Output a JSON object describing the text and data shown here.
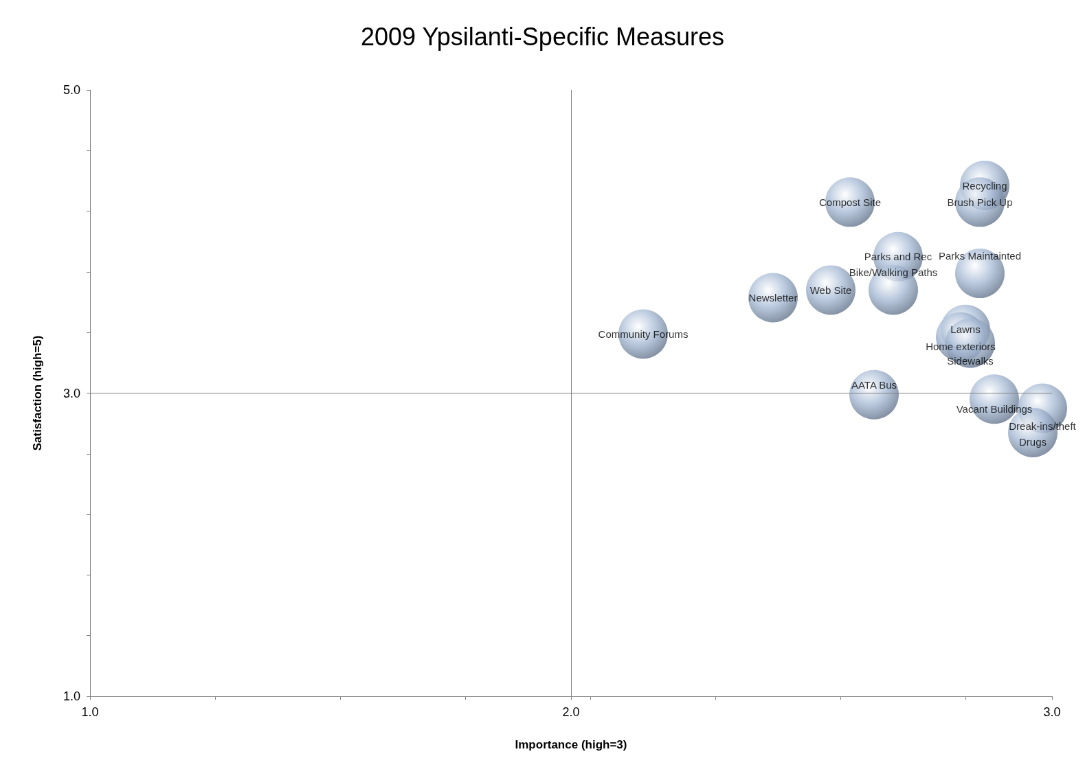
{
  "chart_data": {
    "type": "bubble",
    "title": "2009 Ypsilanti-Specific Measures",
    "xlabel": "Importance (high=3)",
    "ylabel": "Satisfaction (high=5)",
    "xlim": [
      1,
      3
    ],
    "xticks": [
      {
        "value": 1,
        "label": "1.0"
      },
      {
        "value": 1.26,
        "label": null
      },
      {
        "value": 1.52,
        "label": null
      },
      {
        "value": 1.78,
        "label": null
      },
      {
        "value": 2,
        "label": "2.0"
      },
      {
        "value": 2.04,
        "label": null
      },
      {
        "value": 2.3,
        "label": null
      },
      {
        "value": 2.56,
        "label": null
      },
      {
        "value": 2.82,
        "label": null
      },
      {
        "value": 3,
        "label": "3.0"
      }
    ],
    "ylim": [
      1,
      5
    ],
    "yticks": [
      {
        "value": 1,
        "label": "1.0"
      },
      {
        "value": 1.4,
        "label": null
      },
      {
        "value": 1.8,
        "label": null
      },
      {
        "value": 2.2,
        "label": null
      },
      {
        "value": 2.6,
        "label": null
      },
      {
        "value": 3,
        "label": "3.0"
      },
      {
        "value": 3.4,
        "label": null
      },
      {
        "value": 3.8,
        "label": null
      },
      {
        "value": 4.2,
        "label": null
      },
      {
        "value": 4.6,
        "label": null
      },
      {
        "value": 5,
        "label": "5.0"
      }
    ],
    "grid": false,
    "legend": false,
    "ref_lines": [
      {
        "axis": "x",
        "value": 2,
        "label": null,
        "color": "#808080"
      },
      {
        "axis": "y",
        "value": 3,
        "label": null,
        "color": "#808080"
      }
    ],
    "series": [
      {
        "name": "Community Forums",
        "color": "#a9bcd6",
        "x": [
          2.15
        ],
        "values": [
          3.39
        ],
        "sizes": [
          1
        ]
      },
      {
        "name": "Newsletter",
        "color": "#a9bcd6",
        "x": [
          2.42
        ],
        "values": [
          3.63
        ],
        "sizes": [
          1
        ]
      },
      {
        "name": "Web Site",
        "color": "#a9bcd6",
        "x": [
          2.54
        ],
        "values": [
          3.68
        ],
        "sizes": [
          1
        ]
      },
      {
        "name": "Compost Site",
        "color": "#a9bcd6",
        "x": [
          2.58
        ],
        "values": [
          4.26
        ],
        "sizes": [
          1
        ]
      },
      {
        "name": "Parks and Rec",
        "color": "#a9bcd6",
        "x": [
          2.68
        ],
        "values": [
          3.9
        ],
        "sizes": [
          1
        ]
      },
      {
        "name": "Bike/Walking Paths",
        "color": "#a9bcd6",
        "x": [
          2.67
        ],
        "values": [
          3.68
        ],
        "sizes": [
          1
        ]
      },
      {
        "name": "Recycling",
        "color": "#a9bcd6",
        "x": [
          2.86
        ],
        "values": [
          4.37
        ],
        "sizes": [
          1
        ]
      },
      {
        "name": "Brush Pick Up",
        "color": "#a9bcd6",
        "x": [
          2.85
        ],
        "values": [
          4.26
        ],
        "sizes": [
          1
        ]
      },
      {
        "name": "Parks Maintainted",
        "color": "#a9bcd6",
        "x": [
          2.85
        ],
        "values": [
          3.79
        ],
        "sizes": [
          1
        ]
      },
      {
        "name": "Lawns",
        "color": "#a9bcd6",
        "x": [
          2.82
        ],
        "values": [
          3.42
        ],
        "sizes": [
          1
        ]
      },
      {
        "name": "Home exteriors",
        "color": "#a9bcd6",
        "x": [
          2.81
        ],
        "values": [
          3.37
        ],
        "sizes": [
          1
        ]
      },
      {
        "name": "Sidewalks",
        "color": "#a9bcd6",
        "x": [
          2.83
        ],
        "values": [
          3.33
        ],
        "sizes": [
          1
        ]
      },
      {
        "name": "AATA Bus",
        "color": "#a9bcd6",
        "x": [
          2.63
        ],
        "values": [
          2.99
        ],
        "sizes": [
          1
        ]
      },
      {
        "name": "Vacant Buildings",
        "color": "#a9bcd6",
        "x": [
          2.88
        ],
        "values": [
          2.96
        ],
        "sizes": [
          1
        ]
      },
      {
        "name": "Dreak-ins/theft",
        "color": "#a9bcd6",
        "x": [
          2.98
        ],
        "values": [
          2.9
        ],
        "sizes": [
          1
        ]
      },
      {
        "name": "Drugs",
        "color": "#a9bcd6",
        "x": [
          2.96
        ],
        "values": [
          2.74
        ],
        "sizes": [
          1
        ]
      }
    ]
  }
}
